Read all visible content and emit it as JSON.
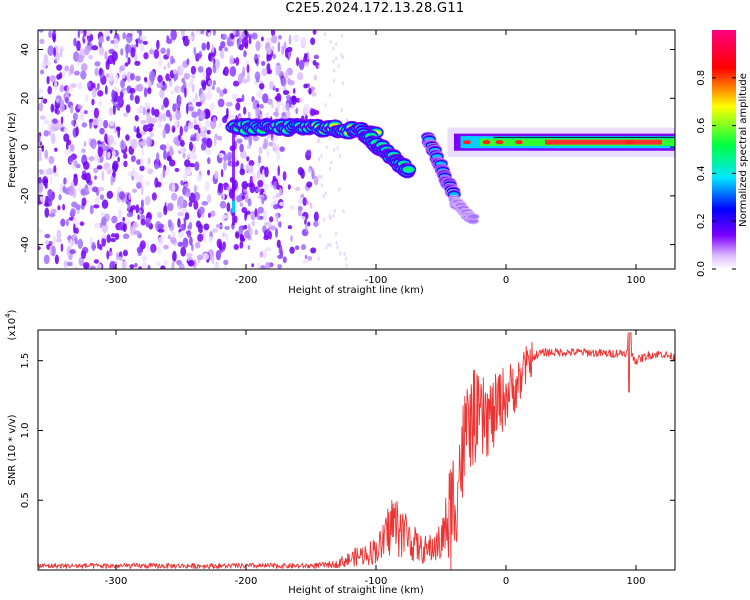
{
  "title": "C2E5.2024.172.13.28.G11",
  "spectrogram": {
    "xlabel": "Height of straight line (km)",
    "ylabel": "Frequency (Hz)",
    "xlim": [
      -360,
      130
    ],
    "ylim": [
      -50,
      48
    ],
    "xticks": [
      -300,
      -200,
      -100,
      0,
      100
    ],
    "yticks": [
      -40,
      -20,
      0,
      20,
      40
    ],
    "colorbar": {
      "label": "Normalized spectral amplitude",
      "range": [
        0.0,
        1.0
      ],
      "ticks": [
        "0.0",
        "0.2",
        "0.4",
        "0.6",
        "0.8"
      ],
      "colors": [
        "#ffffff",
        "#d9b3ff",
        "#7b00ff",
        "#0000ff",
        "#00e5ff",
        "#00ff40",
        "#ffff00",
        "#ff0000",
        "#ff0080"
      ]
    },
    "features": {
      "noise_region_x": [
        -360,
        -145
      ],
      "signal_onset_x": -210,
      "main_tone_freq_hz": 2
    }
  },
  "chart_data": {
    "type": "line",
    "title": "C2E5.2024.172.13.28.G11",
    "xlabel": "Height of straight line (km)",
    "ylabel": "SNR (10 * v/v)",
    "y_multiplier": "(x10",
    "y_multiplier_exp": "4",
    "xlim": [
      -360,
      130
    ],
    "ylim": [
      0,
      1.72
    ],
    "xticks": [
      -300,
      -200,
      -100,
      0,
      100
    ],
    "yticks": [
      "0.5",
      "1.0",
      "1.5"
    ],
    "line_color": "#ee3333",
    "x": [
      -360,
      -330,
      -300,
      -250,
      -200,
      -150,
      -125,
      -115,
      -105,
      -95,
      -88,
      -82,
      -75,
      -70,
      -65,
      -60,
      -55,
      -50,
      -45,
      -40,
      -35,
      -30,
      -25,
      -20,
      -15,
      -10,
      -5,
      0,
      5,
      10,
      15,
      20,
      25,
      30,
      40,
      60,
      80,
      95,
      100,
      110,
      120,
      130
    ],
    "y": [
      0.03,
      0.03,
      0.03,
      0.03,
      0.03,
      0.03,
      0.05,
      0.08,
      0.1,
      0.15,
      0.28,
      0.25,
      0.2,
      0.15,
      0.12,
      0.12,
      0.14,
      0.16,
      0.3,
      0.5,
      0.75,
      1.0,
      1.1,
      1.05,
      1.1,
      1.1,
      1.2,
      1.25,
      1.3,
      1.35,
      1.45,
      1.52,
      1.55,
      1.56,
      1.56,
      1.56,
      1.55,
      1.56,
      1.5,
      1.54,
      1.55,
      1.52
    ]
  }
}
